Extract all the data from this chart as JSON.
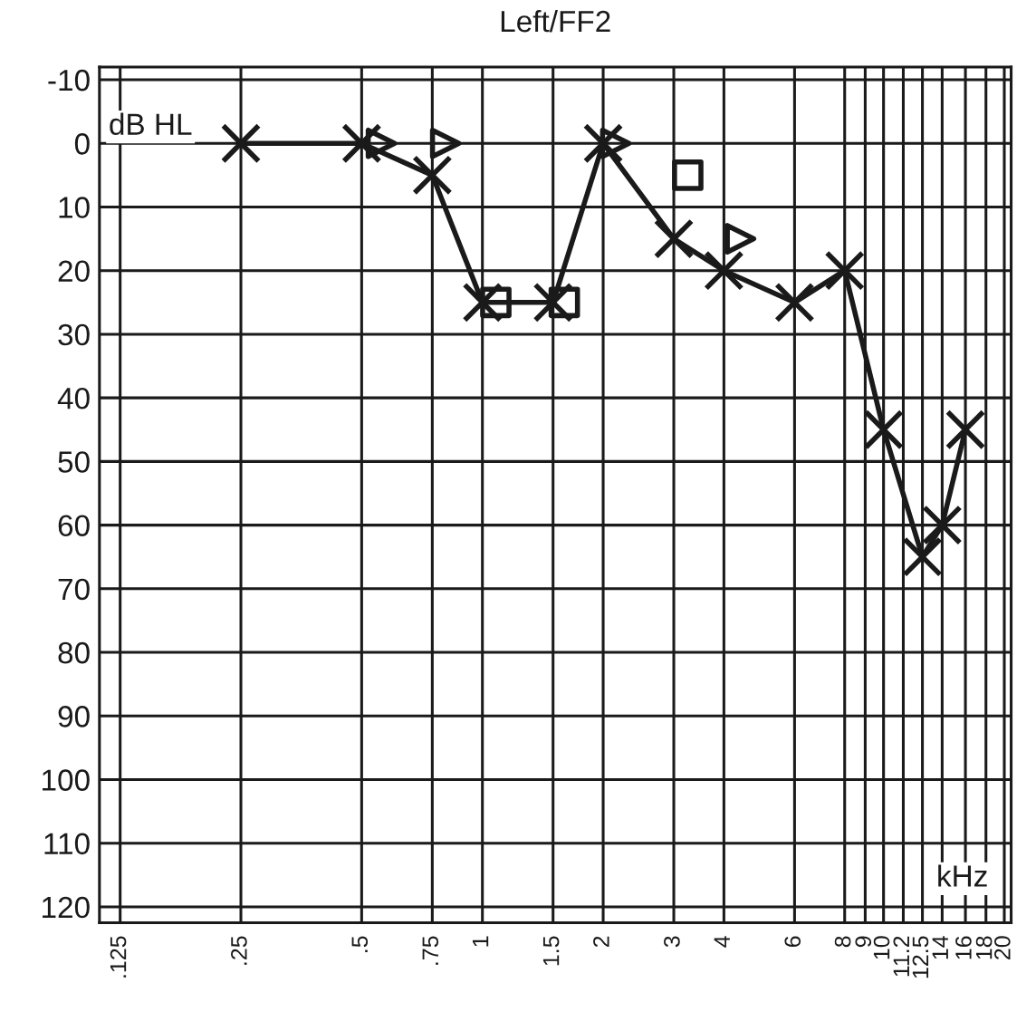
{
  "chart_data": {
    "type": "line",
    "title": "Left/FF2",
    "xlabel": "kHz",
    "ylabel": "dB HL",
    "log": "x",
    "grid": true,
    "legend": false,
    "xlim": [
      0.111,
      20.8
    ],
    "ylim": [
      122.5,
      -12
    ],
    "xticks": [
      {
        "value": 0.125,
        "label": ".125"
      },
      {
        "value": 0.25,
        "label": ".25"
      },
      {
        "value": 0.5,
        "label": ".5"
      },
      {
        "value": 0.75,
        "label": ".75"
      },
      1,
      1.5,
      2,
      3,
      4,
      6,
      8,
      9,
      10,
      11.2,
      12.5,
      14,
      16,
      18,
      20
    ],
    "yticks": [
      -10,
      0,
      10,
      20,
      30,
      40,
      50,
      60,
      70,
      80,
      90,
      100,
      110,
      120
    ],
    "series": [
      {
        "marker": "cross",
        "line_style": "solid",
        "color": "#1a1a1a",
        "x": [
          0.25,
          0.5,
          0.75,
          1,
          1.5,
          2,
          3,
          4,
          6,
          8,
          10,
          12.5,
          14,
          16
        ],
        "values": [
          0,
          0,
          5,
          25,
          25,
          0,
          15,
          20,
          25,
          20,
          45,
          65,
          60,
          45
        ]
      },
      {
        "type": "scatter",
        "marker": "triangle",
        "color": "#1a1a1a",
        "x": [
          0.56,
          0.81,
          2.15,
          4.4
        ],
        "values": [
          0,
          0,
          0,
          15
        ]
      },
      {
        "type": "scatter",
        "marker": "square",
        "color": "#1a1a1a",
        "x": [
          1.08,
          1.6,
          3.25
        ],
        "values": [
          25,
          25,
          5
        ]
      }
    ]
  }
}
